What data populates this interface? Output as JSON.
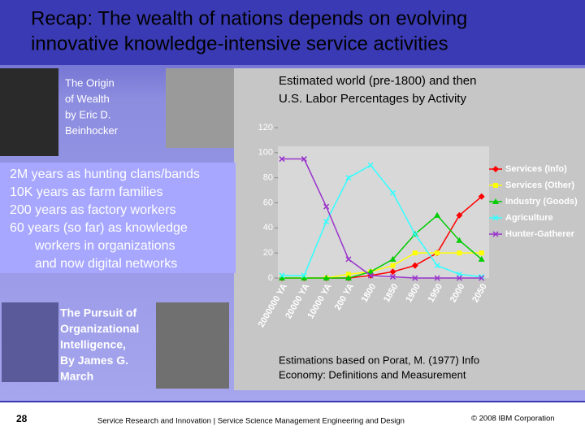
{
  "title": [
    "Recap: The wealth of nations depends on evolving",
    "innovative knowledge-intensive service activities"
  ],
  "book1": [
    "The Origin",
    "of Wealth",
    "by Eric D.",
    "Beinhocker"
  ],
  "bullets": [
    "2M years as hunting clans/bands",
    "10K years as farm families",
    "200 years as factory workers",
    "60 years (so far) as knowledge",
    "workers in organizations",
    "and now digital networks"
  ],
  "book2": [
    "The Pursuit of",
    "Organizational",
    "Intelligence,",
    "By James G.",
    "March"
  ],
  "source": [
    "Estimations based on Porat, M. (1977) Info",
    "Economy: Definitions and Measurement"
  ],
  "footer": {
    "page": "28",
    "center": "Service Research and Innovation  |  Service Science Management Engineering and Design",
    "right": "© 2008 IBM Corporation"
  },
  "chart_data": {
    "type": "line",
    "title": [
      "Estimated world (pre-1800) and then",
      "U.S. Labor Percentages by Activity"
    ],
    "categories": [
      "2000000 YA",
      "20000 YA",
      "10000 YA",
      "200 YA",
      "1800",
      "1850",
      "1900",
      "1950",
      "2000",
      "2050"
    ],
    "ylim": [
      0,
      120
    ],
    "yticks": [
      0,
      20,
      40,
      60,
      80,
      100,
      120
    ],
    "series": [
      {
        "name": "Services (Info)",
        "color": "#ff0000",
        "marker": "diamond",
        "values": [
          0,
          0,
          0,
          0,
          2,
          5,
          10,
          20,
          50,
          65
        ]
      },
      {
        "name": "Services (Other)",
        "color": "#ffff00",
        "marker": "square",
        "values": [
          0,
          0,
          0,
          3,
          5,
          10,
          20,
          20,
          20,
          20
        ]
      },
      {
        "name": "Industry (Goods)",
        "color": "#00cc00",
        "marker": "triangle",
        "values": [
          0,
          0,
          0,
          0,
          5,
          15,
          35,
          50,
          30,
          15
        ]
      },
      {
        "name": "Agriculture",
        "color": "#33ffff",
        "marker": "x",
        "values": [
          2,
          2,
          45,
          80,
          90,
          68,
          35,
          10,
          3,
          1
        ]
      },
      {
        "name": "Hunter-Gatherer",
        "color": "#9933cc",
        "marker": "x",
        "values": [
          95,
          95,
          57,
          15,
          2,
          1,
          0,
          0,
          0,
          0
        ]
      }
    ]
  }
}
